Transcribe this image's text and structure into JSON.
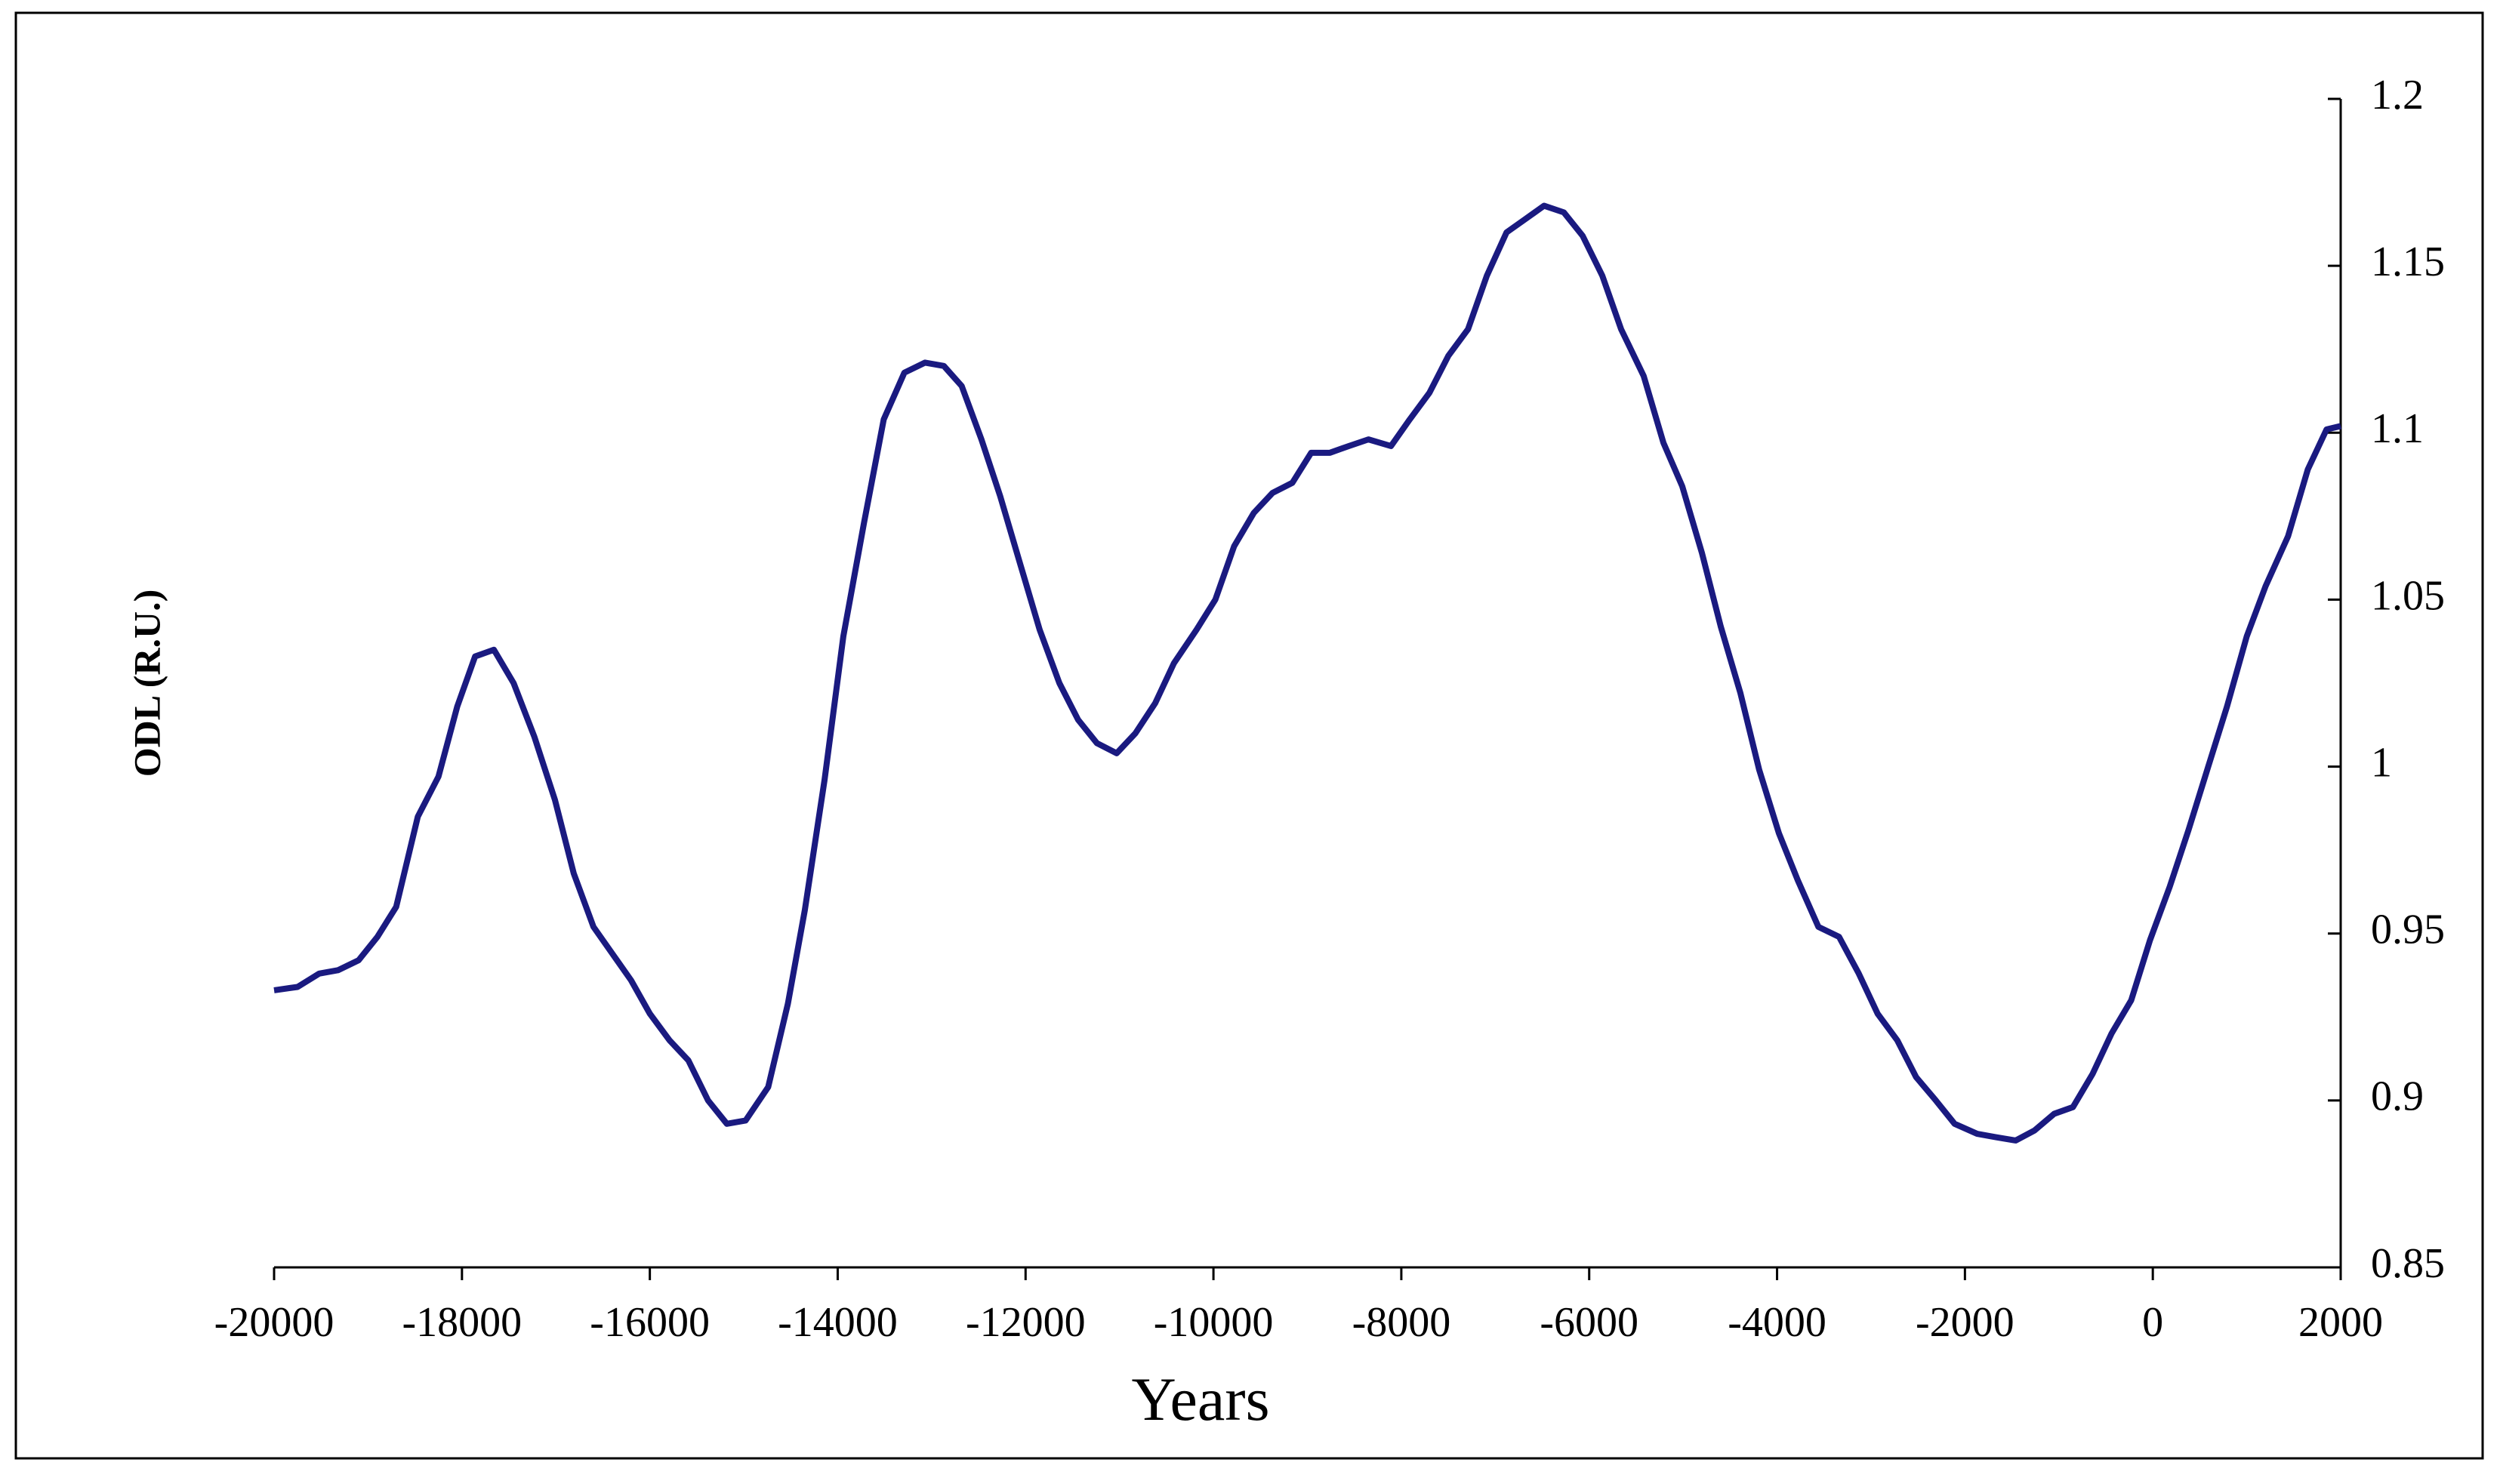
{
  "chart_data": {
    "type": "line",
    "x_label": "Years",
    "y_label": "ODL (R.U.)",
    "xlim": [
      -20000,
      2000
    ],
    "xticks": [
      -20000,
      -18000,
      -16000,
      -14000,
      -12000,
      -10000,
      -8000,
      -6000,
      -4000,
      -2000,
      0,
      2000
    ],
    "ylim": [
      0.85,
      1.2
    ],
    "yticks": [
      0.85,
      0.9,
      0.95,
      1,
      1.05,
      1.1,
      1.15,
      1.2
    ],
    "y_axis_side": "right",
    "series": [
      {
        "color": "#1a1a80",
        "x": [
          -20000,
          -19750,
          -19520,
          -19320,
          -19100,
          -18900,
          -18700,
          -18470,
          -18250,
          -18050,
          -17860,
          -17660,
          -17450,
          -17230,
          -17010,
          -16810,
          -16600,
          -16400,
          -16200,
          -16000,
          -15790,
          -15590,
          -15380,
          -15180,
          -14980,
          -14740,
          -14530,
          -14350,
          -14140,
          -13940,
          -13720,
          -13510,
          -13290,
          -13070,
          -12870,
          -12680,
          -12470,
          -12270,
          -12050,
          -11850,
          -11640,
          -11440,
          -11240,
          -11030,
          -10830,
          -10620,
          -10420,
          -10180,
          -9980,
          -9780,
          -9570,
          -9370,
          -9160,
          -8960,
          -8760,
          -8560,
          -8350,
          -8110,
          -7910,
          -7700,
          -7500,
          -7290,
          -7090,
          -6880,
          -6680,
          -6480,
          -6270,
          -6070,
          -5860,
          -5660,
          -5420,
          -5210,
          -5010,
          -4800,
          -4600,
          -4390,
          -4190,
          -3980,
          -3780,
          -3560,
          -3340,
          -3130,
          -2930,
          -2720,
          -2520,
          -2310,
          -2110,
          -1870,
          -1670,
          -1460,
          -1260,
          -1050,
          -850,
          -640,
          -440,
          -230,
          -30,
          180,
          380,
          590,
          790,
          1000,
          1200,
          1440,
          1650,
          1850,
          2000
        ],
        "values": [
          0.933,
          0.934,
          0.938,
          0.939,
          0.942,
          0.949,
          0.958,
          0.985,
          0.997,
          1.018,
          1.033,
          1.035,
          1.025,
          1.009,
          0.99,
          0.968,
          0.952,
          0.944,
          0.936,
          0.926,
          0.918,
          0.912,
          0.9,
          0.893,
          0.894,
          0.904,
          0.929,
          0.957,
          0.996,
          1.039,
          1.073,
          1.104,
          1.118,
          1.121,
          1.12,
          1.114,
          1.098,
          1.081,
          1.06,
          1.041,
          1.025,
          1.014,
          1.007,
          1.004,
          1.01,
          1.019,
          1.031,
          1.041,
          1.05,
          1.066,
          1.076,
          1.082,
          1.085,
          1.094,
          1.094,
          1.096,
          1.098,
          1.096,
          1.104,
          1.112,
          1.123,
          1.131,
          1.147,
          1.16,
          1.164,
          1.168,
          1.166,
          1.159,
          1.147,
          1.131,
          1.117,
          1.097,
          1.084,
          1.064,
          1.042,
          1.022,
          0.999,
          0.98,
          0.966,
          0.952,
          0.949,
          0.938,
          0.926,
          0.918,
          0.907,
          0.9,
          0.893,
          0.89,
          0.889,
          0.888,
          0.891,
          0.896,
          0.898,
          0.908,
          0.92,
          0.93,
          0.948,
          0.964,
          0.981,
          1,
          1.018,
          1.039,
          1.054,
          1.069,
          1.089,
          1.101,
          1.102
        ]
      }
    ]
  }
}
